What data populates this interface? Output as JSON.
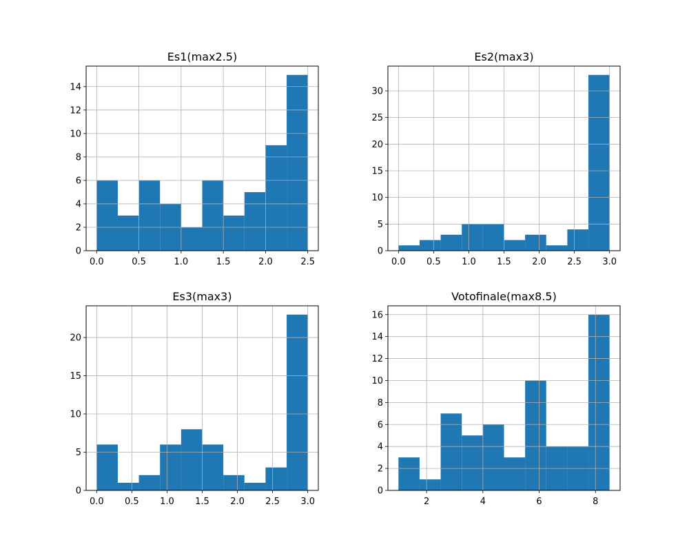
{
  "colors": {
    "bar": "#1f77b4",
    "grid": "#b0b0b0",
    "axis": "#000000"
  },
  "chart_data": [
    {
      "type": "bar",
      "title": "Es1(max2.5)",
      "bin_edges": [
        0,
        0.25,
        0.5,
        0.75,
        1.0,
        1.25,
        1.5,
        1.75,
        2.0,
        2.25,
        2.5
      ],
      "values": [
        6,
        3,
        6,
        4,
        2,
        6,
        3,
        5,
        9,
        15
      ],
      "xlim": [
        -0.125,
        2.625
      ],
      "ylim": [
        0,
        15.75
      ],
      "xticks": [
        0,
        0.5,
        1.0,
        1.5,
        2.0,
        2.5
      ],
      "xtick_labels": [
        "0.0",
        "0.5",
        "1.0",
        "1.5",
        "2.0",
        "2.5"
      ],
      "yticks": [
        0,
        2,
        4,
        6,
        8,
        10,
        12,
        14
      ],
      "ytick_labels": [
        "0",
        "2",
        "4",
        "6",
        "8",
        "10",
        "12",
        "14"
      ],
      "grid": true,
      "xlabel": "",
      "ylabel": ""
    },
    {
      "type": "bar",
      "title": "Es2(max3)",
      "bin_edges": [
        0,
        0.3,
        0.6,
        0.9,
        1.2,
        1.5,
        1.8,
        2.1,
        2.4,
        2.7,
        3.0
      ],
      "values": [
        1,
        2,
        3,
        5,
        5,
        2,
        3,
        1,
        4,
        33
      ],
      "xlim": [
        -0.15,
        3.15
      ],
      "ylim": [
        0,
        34.65
      ],
      "xticks": [
        0,
        0.5,
        1.0,
        1.5,
        2.0,
        2.5,
        3.0
      ],
      "xtick_labels": [
        "0.0",
        "0.5",
        "1.0",
        "1.5",
        "2.0",
        "2.5",
        "3.0"
      ],
      "yticks": [
        0,
        5,
        10,
        15,
        20,
        25,
        30
      ],
      "ytick_labels": [
        "0",
        "5",
        "10",
        "15",
        "20",
        "25",
        "30"
      ],
      "grid": true,
      "xlabel": "",
      "ylabel": ""
    },
    {
      "type": "bar",
      "title": "Es3(max3)",
      "bin_edges": [
        0,
        0.3,
        0.6,
        0.9,
        1.2,
        1.5,
        1.8,
        2.1,
        2.4,
        2.7,
        3.0
      ],
      "values": [
        6,
        1,
        2,
        6,
        8,
        6,
        2,
        1,
        3,
        23
      ],
      "xlim": [
        -0.15,
        3.15
      ],
      "ylim": [
        0,
        24.15
      ],
      "xticks": [
        0,
        0.5,
        1.0,
        1.5,
        2.0,
        2.5,
        3.0
      ],
      "xtick_labels": [
        "0.0",
        "0.5",
        "1.0",
        "1.5",
        "2.0",
        "2.5",
        "3.0"
      ],
      "yticks": [
        0,
        5,
        10,
        15,
        20
      ],
      "ytick_labels": [
        "0",
        "5",
        "10",
        "15",
        "20"
      ],
      "grid": true,
      "xlabel": "",
      "ylabel": ""
    },
    {
      "type": "bar",
      "title": "Votofinale(max8.5)",
      "bin_edges": [
        1.0,
        1.75,
        2.5,
        3.25,
        4.0,
        4.75,
        5.5,
        6.25,
        7.0,
        7.75,
        8.5
      ],
      "values": [
        3,
        1,
        7,
        5,
        6,
        3,
        10,
        4,
        4,
        16
      ],
      "xlim": [
        0.625,
        8.875
      ],
      "ylim": [
        0,
        16.8
      ],
      "xticks": [
        2,
        4,
        6,
        8
      ],
      "xtick_labels": [
        "2",
        "4",
        "6",
        "8"
      ],
      "yticks": [
        0,
        2,
        4,
        6,
        8,
        10,
        12,
        14,
        16
      ],
      "ytick_labels": [
        "0",
        "2",
        "4",
        "6",
        "8",
        "10",
        "12",
        "14",
        "16"
      ],
      "grid": true,
      "xlabel": "",
      "ylabel": ""
    }
  ]
}
